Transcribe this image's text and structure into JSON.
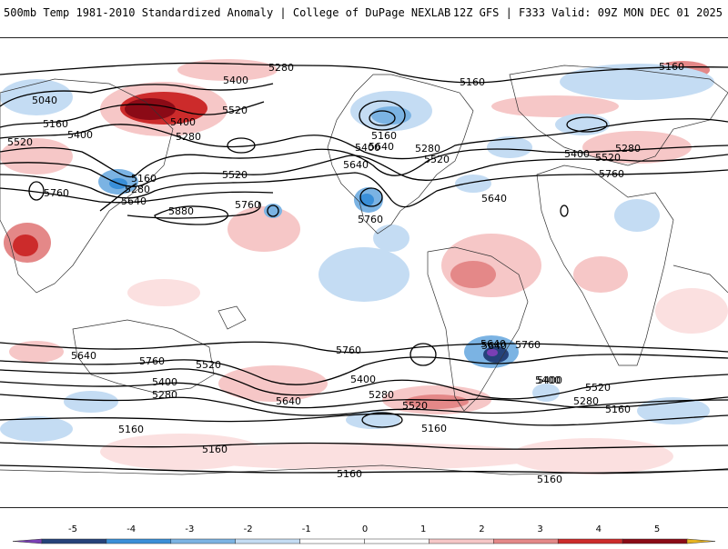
{
  "header": {
    "left_title": "500mb Temp 1981-2010 Standardized Anomaly | College of DuPage NEXLAB",
    "right_title": "12Z GFS | F333 Valid: 09Z MON DEC 01 2025"
  },
  "map": {
    "projection": "equirectangular-world",
    "contour_labels": [
      "5040",
      "5160",
      "5400",
      "5280",
      "5520",
      "5400",
      "5520",
      "5280",
      "5400",
      "5160",
      "5280",
      "5160",
      "5760",
      "5640",
      "5880",
      "5760",
      "5640",
      "5400",
      "5520",
      "5280",
      "5640",
      "5760",
      "5160",
      "5160",
      "5400",
      "5280",
      "5520",
      "5640",
      "5760",
      "5520",
      "5640",
      "5760",
      "5640",
      "5400",
      "5520",
      "5400",
      "5280",
      "5160",
      "5640",
      "5400",
      "5280",
      "5520",
      "5160",
      "5160",
      "5160",
      "5160",
      "5760",
      "5640",
      "5760",
      "5400",
      "5520",
      "5280",
      "5160"
    ]
  },
  "colorbar": {
    "ticks": [
      "-5",
      "-4",
      "-3",
      "-2",
      "-1",
      "0",
      "1",
      "2",
      "3",
      "4",
      "5"
    ],
    "colors": [
      "#7a3fb5",
      "#25427a",
      "#3a8fd8",
      "#7bb3e3",
      "#c4dcf3",
      "#ffffff",
      "#ffffff",
      "#f6c7c7",
      "#e48888",
      "#cc2b2b",
      "#8b0a16",
      "#e6b320"
    ]
  }
}
